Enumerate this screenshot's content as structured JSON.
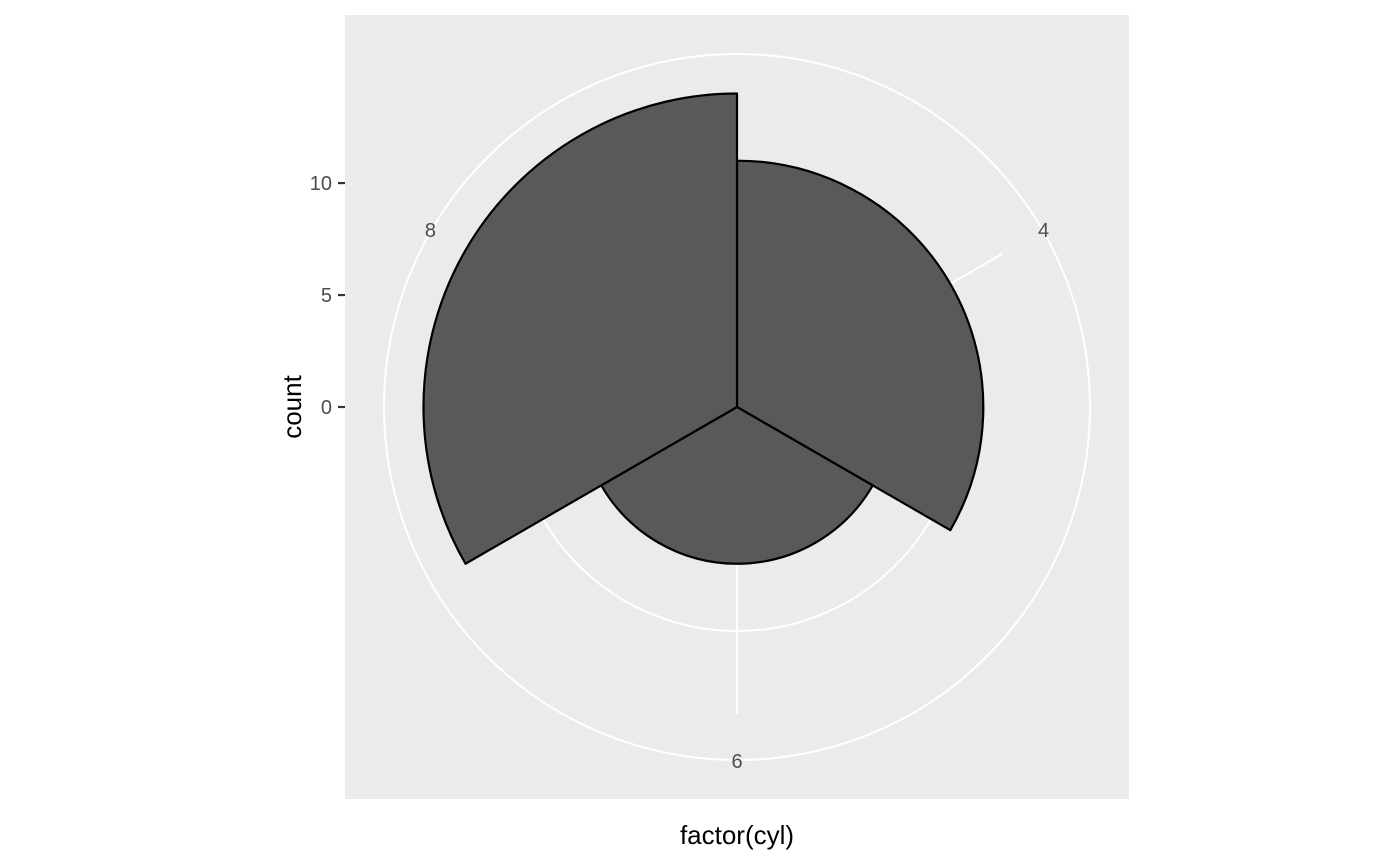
{
  "chart_data": {
    "type": "bar",
    "coord": "polar",
    "categories": [
      "4",
      "6",
      "8"
    ],
    "values": [
      11,
      7,
      14
    ],
    "xlabel": "factor(cyl)",
    "ylabel": "count",
    "y_ticks": [
      "0",
      "5",
      "10"
    ],
    "y_tick_values": [
      0,
      5,
      10
    ],
    "ylim": [
      0,
      14
    ],
    "grid": true,
    "legend": "none",
    "colors": {
      "panel_background": "#ebebeb",
      "grid": "#ffffff",
      "bar_fill": "#595959",
      "bar_outline": "#000000",
      "tick_text": "#4d4d4d",
      "title_text": "#000000"
    }
  }
}
